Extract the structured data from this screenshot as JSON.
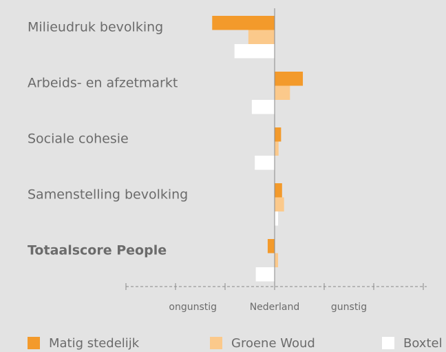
{
  "chart_data": {
    "type": "hbar",
    "categories": [
      "Milieudruk bevolking",
      "Arbeids- en afzetmarkt",
      "Sociale cohesie",
      "Samenstelling bevolking",
      "Totaalscore People"
    ],
    "highlight_index": 4,
    "series": [
      {
        "name": "Matig stedelijk",
        "color": "#f39a2b",
        "values": [
          -1.26,
          0.57,
          0.13,
          0.15,
          -0.14
        ]
      },
      {
        "name": "Groene Woud",
        "color": "#fbc98b",
        "values": [
          -0.53,
          0.31,
          0.08,
          0.19,
          0.07
        ]
      },
      {
        "name": "Boxtel",
        "color": "#ffffff",
        "values": [
          -0.81,
          -0.46,
          -0.4,
          0.07,
          -0.38
        ]
      }
    ],
    "xlim": [
      -3,
      3
    ],
    "xticks": [
      -3,
      -2,
      -1,
      0,
      1,
      2,
      3
    ],
    "xtick_labels": [
      {
        "value": -1.65,
        "label": "ongunstig"
      },
      {
        "value": 0,
        "label": "Nederland"
      },
      {
        "value": 1.5,
        "label": "gunstig"
      }
    ]
  }
}
